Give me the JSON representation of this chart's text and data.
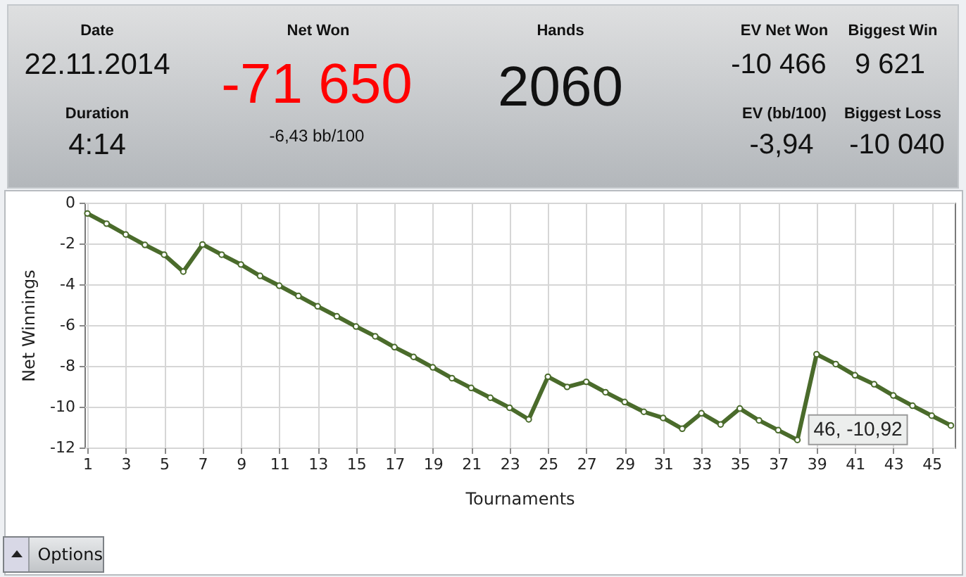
{
  "chart_data": [
    {
      "type": "other",
      "annotations": [
        "Date",
        "22.11.2014",
        "Duration",
        "4:14",
        "Net Won",
        "-71 650",
        "-6,43 bb/100",
        "Hands",
        "2060",
        "EV Net Won",
        "-10 466",
        "EV (bb/100)",
        "-3,94",
        "Biggest Win",
        "9 621",
        "Biggest Loss",
        "-10 040"
      ]
    },
    {
      "type": "line",
      "xlabel": "Tournaments",
      "ylabel": "Net Winnings",
      "x": [
        1,
        2,
        3,
        4,
        5,
        6,
        7,
        8,
        9,
        10,
        11,
        12,
        13,
        14,
        15,
        16,
        17,
        18,
        19,
        20,
        21,
        22,
        23,
        24,
        25,
        26,
        27,
        28,
        29,
        30,
        31,
        32,
        33,
        34,
        35,
        36,
        37,
        38,
        39,
        40,
        41,
        42,
        43,
        44,
        45,
        46
      ],
      "series": [
        {
          "color": "#4a6b2b",
          "values": [
            -0.53,
            -1.03,
            -1.56,
            -2.07,
            -2.55,
            -3.38,
            -2.05,
            -2.55,
            -3.03,
            -3.59,
            -4.07,
            -4.57,
            -5.08,
            -5.57,
            -6.07,
            -6.55,
            -7.08,
            -7.56,
            -8.07,
            -8.6,
            -9.08,
            -9.56,
            -10.05,
            -10.62,
            -8.53,
            -9.03,
            -8.78,
            -9.29,
            -9.77,
            -10.25,
            -10.55,
            -11.08,
            -10.32,
            -10.87,
            -10.09,
            -10.67,
            -11.15,
            -11.63,
            -7.43,
            -7.91,
            -8.46,
            -8.9,
            -9.45,
            -9.95,
            -10.44,
            -10.92
          ]
        }
      ],
      "xlim": [
        0.85,
        46.2
      ],
      "xticks": [
        1,
        3,
        5,
        7,
        9,
        11,
        13,
        15,
        17,
        19,
        21,
        23,
        25,
        27,
        29,
        31,
        33,
        35,
        37,
        39,
        41,
        43,
        45
      ],
      "ylim": [
        -12,
        0
      ],
      "yticks": [
        0,
        -2,
        -4,
        -6,
        -8,
        -10,
        -12
      ],
      "grid": true,
      "marker": "circle",
      "line_style": "solid",
      "annotations": [
        {
          "text": "46, -10,92",
          "x": 46,
          "y": -10.92
        },
        "Options"
      ]
    }
  ]
}
